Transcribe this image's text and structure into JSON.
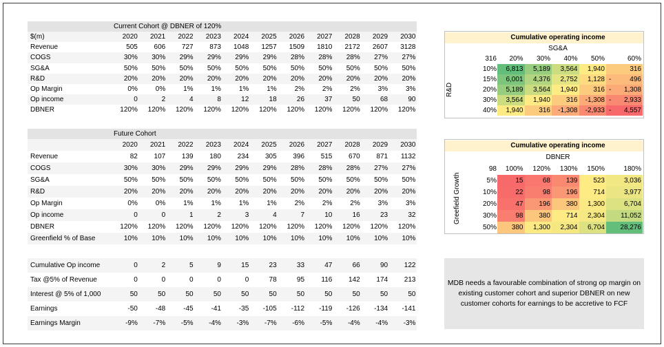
{
  "current_cohort": {
    "title": "Current Cohort @ DBNER of 120%",
    "years_label": "$(m)",
    "years": [
      "2020",
      "2021",
      "2022",
      "2023",
      "2024",
      "2025",
      "2026",
      "2027",
      "2028",
      "2029",
      "2030"
    ],
    "rows": [
      {
        "label": "Revenue",
        "values": [
          "505",
          "606",
          "727",
          "873",
          "1048",
          "1257",
          "1509",
          "1810",
          "2172",
          "2607",
          "3128"
        ]
      },
      {
        "label": "COGS",
        "values": [
          "30%",
          "30%",
          "29%",
          "29%",
          "29%",
          "29%",
          "28%",
          "28%",
          "28%",
          "27%",
          "27%"
        ]
      },
      {
        "label": "SG&A",
        "values": [
          "50%",
          "50%",
          "50%",
          "50%",
          "50%",
          "50%",
          "50%",
          "50%",
          "50%",
          "50%",
          "50%"
        ]
      },
      {
        "label": "R&D",
        "values": [
          "20%",
          "20%",
          "20%",
          "20%",
          "20%",
          "20%",
          "20%",
          "20%",
          "20%",
          "20%",
          "20%"
        ]
      },
      {
        "label": "Op Margin",
        "values": [
          "0%",
          "0%",
          "1%",
          "1%",
          "1%",
          "1%",
          "2%",
          "2%",
          "2%",
          "3%",
          "3%"
        ]
      },
      {
        "label": "Op income",
        "values": [
          "0",
          "2",
          "4",
          "8",
          "12",
          "18",
          "26",
          "37",
          "50",
          "68",
          "90"
        ]
      },
      {
        "label": "DBNER",
        "values": [
          "120%",
          "120%",
          "120%",
          "120%",
          "120%",
          "120%",
          "120%",
          "120%",
          "120%",
          "120%",
          "120%"
        ]
      }
    ]
  },
  "future_cohort": {
    "title": "Future Cohort",
    "years": [
      "2020",
      "2021",
      "2022",
      "2023",
      "2024",
      "2025",
      "2026",
      "2027",
      "2028",
      "2029",
      "2030"
    ],
    "rows": [
      {
        "label": "Revenue",
        "values": [
          "82",
          "107",
          "139",
          "180",
          "234",
          "305",
          "396",
          "515",
          "670",
          "871",
          "1132"
        ]
      },
      {
        "label": "COGS",
        "values": [
          "30%",
          "30%",
          "29%",
          "29%",
          "29%",
          "29%",
          "28%",
          "28%",
          "28%",
          "27%",
          "27%"
        ]
      },
      {
        "label": "SG&A",
        "values": [
          "50%",
          "50%",
          "50%",
          "50%",
          "50%",
          "50%",
          "50%",
          "50%",
          "50%",
          "50%",
          "50%"
        ]
      },
      {
        "label": "R&D",
        "values": [
          "20%",
          "20%",
          "20%",
          "20%",
          "20%",
          "20%",
          "20%",
          "20%",
          "20%",
          "20%",
          "20%"
        ]
      },
      {
        "label": "Op Margin",
        "values": [
          "0%",
          "0%",
          "1%",
          "1%",
          "1%",
          "1%",
          "2%",
          "2%",
          "2%",
          "3%",
          "3%"
        ]
      },
      {
        "label": "Op income",
        "values": [
          "0",
          "0",
          "1",
          "2",
          "3",
          "4",
          "7",
          "10",
          "16",
          "23",
          "32"
        ]
      },
      {
        "label": "DBNER",
        "values": [
          "120%",
          "120%",
          "120%",
          "120%",
          "120%",
          "120%",
          "120%",
          "120%",
          "120%",
          "120%",
          "120%"
        ]
      },
      {
        "label": "Greenfield % of Base",
        "values": [
          "10%",
          "10%",
          "10%",
          "10%",
          "10%",
          "10%",
          "10%",
          "10%",
          "10%",
          "10%",
          "10%"
        ]
      }
    ]
  },
  "earnings_bridge": {
    "rows": [
      {
        "label": "Cumulative Op income",
        "values": [
          "0",
          "2",
          "5",
          "9",
          "15",
          "23",
          "33",
          "47",
          "66",
          "90",
          "122"
        ]
      },
      {
        "label": "Tax @5% of Revenue",
        "values": [
          "0",
          "0",
          "0",
          "0",
          "0",
          "78",
          "95",
          "116",
          "142",
          "174",
          "213"
        ]
      },
      {
        "label": "Interest @ 5% of 1,000",
        "values": [
          "50",
          "50",
          "50",
          "50",
          "50",
          "50",
          "50",
          "50",
          "50",
          "50",
          "50"
        ]
      },
      {
        "label": "Earnings",
        "values": [
          "-50",
          "-48",
          "-45",
          "-41",
          "-35",
          "-105",
          "-112",
          "-119",
          "-126",
          "-134",
          "-141"
        ]
      },
      {
        "label": "Earnings Margin",
        "values": [
          "-9%",
          "-7%",
          "-5%",
          "-4%",
          "-3%",
          "-7%",
          "-6%",
          "-5%",
          "-4%",
          "-4%",
          "-3%"
        ]
      }
    ]
  },
  "sensitivity_rnd_sga": {
    "title": "Cumulative operating income",
    "column_axis": "SG&A",
    "row_axis": "R&D",
    "corner": "316",
    "columns": [
      "20%",
      "30%",
      "40%",
      "50%",
      "60%"
    ],
    "rows": [
      {
        "label": "10%",
        "values": [
          "6,813",
          "5,189",
          "3,564",
          "1,940",
          "316"
        ]
      },
      {
        "label": "15%",
        "values": [
          "6,001",
          "4,376",
          "2,752",
          "1,128",
          "- 496"
        ]
      },
      {
        "label": "20%",
        "values": [
          "5,189",
          "3,564",
          "1,940",
          "316",
          "- 1,308"
        ]
      },
      {
        "label": "30%",
        "values": [
          "3,564",
          "1,940",
          "316",
          "-1,308",
          "- 2,933"
        ]
      },
      {
        "label": "40%",
        "values": [
          "1,940",
          "316",
          "-1,308",
          "-2,933",
          "- 4,557"
        ]
      }
    ]
  },
  "sensitivity_greenfield_dbner": {
    "title": "Cumulative operating income",
    "column_axis": "DBNER",
    "row_axis": "Greefield Growth",
    "corner": "98",
    "columns": [
      "100%",
      "120%",
      "130%",
      "150%",
      "180%"
    ],
    "rows": [
      {
        "label": "5%",
        "values": [
          "15",
          "68",
          "139",
          "523",
          "3,036"
        ]
      },
      {
        "label": "10%",
        "values": [
          "22",
          "98",
          "196",
          "714",
          "3,977"
        ]
      },
      {
        "label": "20%",
        "values": [
          "47",
          "196",
          "380",
          "1,300",
          "6,704"
        ]
      },
      {
        "label": "30%",
        "values": [
          "98",
          "380",
          "714",
          "2,304",
          "11,052"
        ]
      },
      {
        "label": "50%",
        "values": [
          "380",
          "1,300",
          "2,304",
          "6,704",
          "28,276"
        ]
      }
    ]
  },
  "color_scale": {
    "low": "#f8696b",
    "mid": "#ffeb84",
    "high": "#63be7b"
  },
  "note": {
    "lines": [
      "MDB needs a favourable combination of strong op margin on",
      "existing customer cohort and superior DBNER on new",
      "customer cohorts for earnings to be accretive to FCF"
    ]
  }
}
